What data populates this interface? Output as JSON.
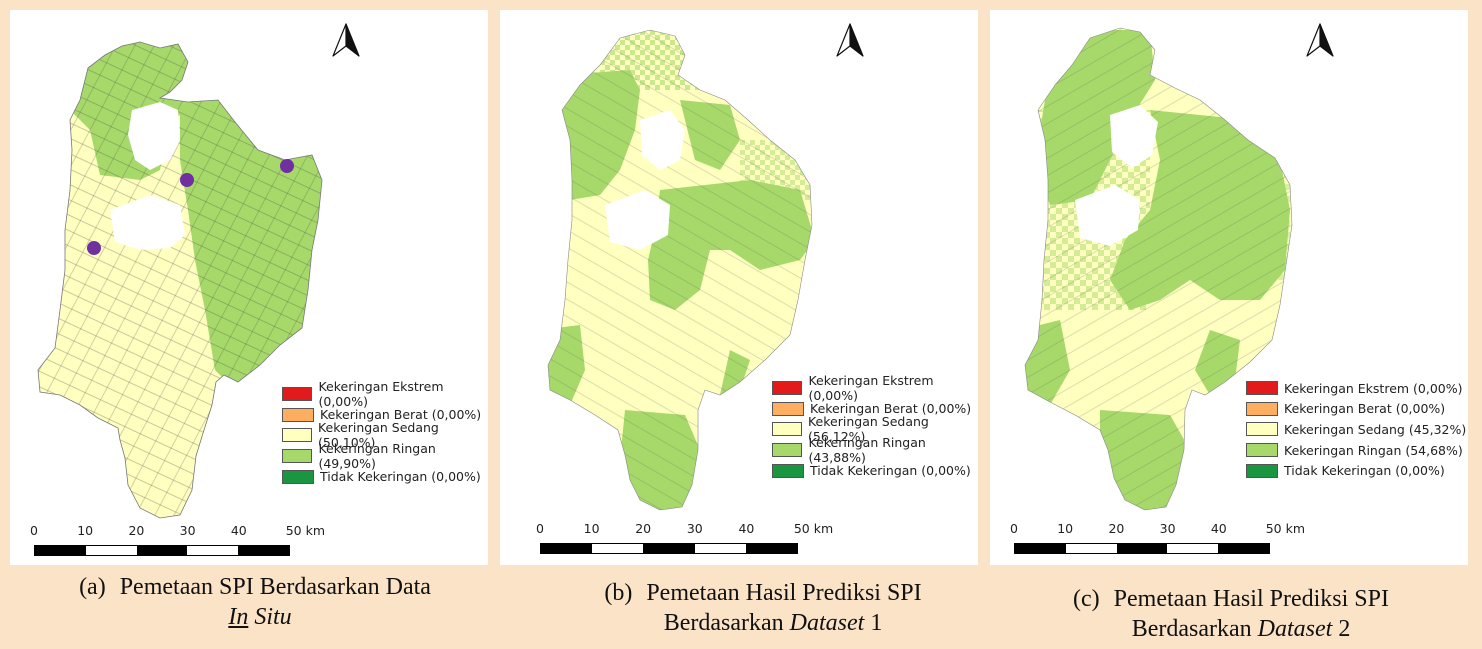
{
  "panels": [
    {
      "caption_index": "(a)",
      "caption_line1": "Pemetaan SPI Berdasarkan Data",
      "caption_line2_a": "In",
      "caption_line2_b": " Situ",
      "caption_line2_c": "",
      "legend": [
        {
          "label": "Kekeringan Ekstrem (0,00%)",
          "color": "#e31a1c"
        },
        {
          "label": "Kekeringan Berat (0,00%)",
          "color": "#fdae61"
        },
        {
          "label": "Kekeringan Sedang (50,10%)",
          "color": "#ffffc0"
        },
        {
          "label": "Kekeringan Ringan (49,90%)",
          "color": "#a6d96a"
        },
        {
          "label": "Tidak Kekeringan (0,00%)",
          "color": "#1a9641"
        }
      ],
      "scale_ticks": [
        "0",
        "10",
        "20",
        "30",
        "40",
        "50 km"
      ]
    },
    {
      "caption_index": "(b)",
      "caption_line1": "Pemetaan Hasil Prediksi SPI",
      "caption_line2_a": "Berdasarkan ",
      "caption_line2_b": "Dataset",
      "caption_line2_c": " 1",
      "legend": [
        {
          "label": "Kekeringan Ekstrem (0,00%)",
          "color": "#e31a1c"
        },
        {
          "label": "Kekeringan Berat (0,00%)",
          "color": "#fdae61"
        },
        {
          "label": "Kekeringan Sedang (56,12%)",
          "color": "#ffffc0"
        },
        {
          "label": "Kekeringan Ringan (43,88%)",
          "color": "#a6d96a"
        },
        {
          "label": "Tidak Kekeringan (0,00%)",
          "color": "#1a9641"
        }
      ],
      "scale_ticks": [
        "0",
        "10",
        "20",
        "30",
        "40",
        "50 km"
      ]
    },
    {
      "caption_index": "(c)",
      "caption_line1": "Pemetaan Hasil Prediksi SPI",
      "caption_line2_a": "Berdasarkan ",
      "caption_line2_b": "Dataset",
      "caption_line2_c": " 2",
      "legend": [
        {
          "label": "Kekeringan Ekstrem (0,00%)",
          "color": "#e31a1c"
        },
        {
          "label": "Kekeringan Berat (0,00%)",
          "color": "#fdae61"
        },
        {
          "label": "Kekeringan Sedang (45,32%)",
          "color": "#ffffc0"
        },
        {
          "label": "Kekeringan Ringan (54,68%)",
          "color": "#a6d96a"
        },
        {
          "label": "Tidak Kekeringan (0,00%)",
          "color": "#1a9641"
        }
      ],
      "scale_ticks": [
        "0",
        "10",
        "20",
        "30",
        "40",
        "50 km"
      ]
    }
  ],
  "colors": {
    "sedang": "#ffffc0",
    "ringan": "#a6d96a",
    "station": "#7030a0",
    "background": "#fbe3c8"
  },
  "icons": {
    "north_arrow": "north-arrow-icon",
    "station_marker": "station-point-icon"
  }
}
